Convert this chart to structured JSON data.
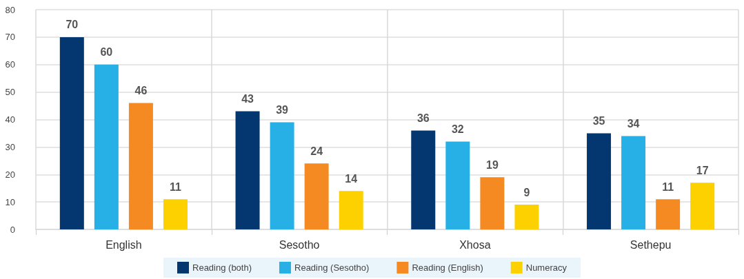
{
  "chart_data": {
    "type": "bar",
    "categories": [
      "English",
      "Sesotho",
      "Xhosa",
      "Sethepu"
    ],
    "series": [
      {
        "name": "Reading (both)",
        "color": "#04366f",
        "values": [
          70,
          43,
          36,
          35
        ]
      },
      {
        "name": "Reading (Sesotho)",
        "color": "#27b0e6",
        "values": [
          60,
          39,
          32,
          34
        ]
      },
      {
        "name": "Reading (English)",
        "color": "#f48a21",
        "values": [
          46,
          24,
          19,
          11
        ]
      },
      {
        "name": "Numeracy",
        "color": "#fdd100",
        "values": [
          11,
          14,
          9,
          17
        ]
      }
    ],
    "ylim": [
      0,
      80
    ],
    "yticks": [
      0,
      10,
      20,
      30,
      40,
      50,
      60,
      70,
      80
    ],
    "grid": true,
    "legend": "bottom",
    "data_labels": true
  }
}
